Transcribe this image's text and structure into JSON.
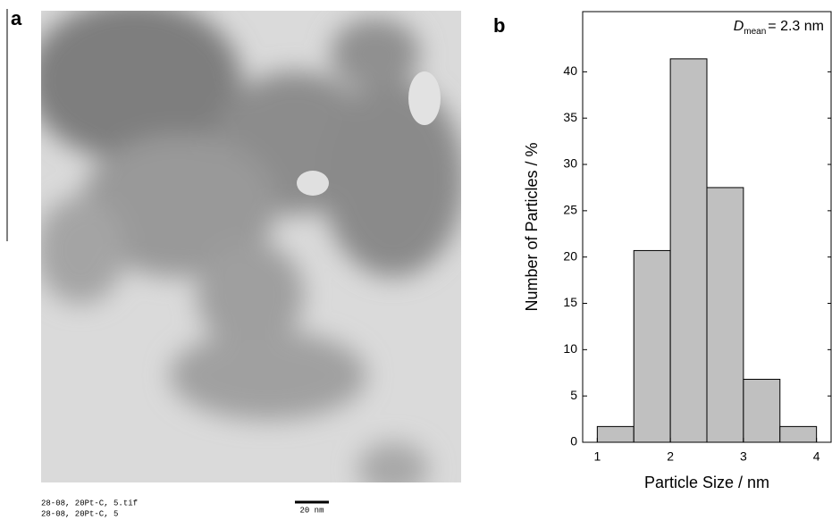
{
  "panel_labels": [
    "a",
    "b"
  ],
  "image": {
    "caption_lines": [
      "28-08, 20Pt-C, 5.tif",
      "28-08, 20Pt-C, 5"
    ],
    "scale_bar": "20 nm"
  },
  "chart_data": {
    "type": "histogram",
    "xlabel": "Particle Size / nm",
    "ylabel": "Number of Particles / %",
    "bins": [
      1,
      1.5,
      2,
      2.5,
      3,
      3.5,
      4
    ],
    "values": [
      1.7,
      20.7,
      41.4,
      27.5,
      6.8,
      1.7
    ],
    "color": "#c0c0c0",
    "xlim": [
      0.8,
      4.2
    ],
    "ylim": [
      0,
      46.5
    ],
    "xticks": [
      1,
      2,
      3,
      4
    ],
    "yticks": [
      0,
      5,
      10,
      15,
      20,
      25,
      30,
      35,
      40
    ],
    "annotation": {
      "symbol": "D",
      "subscript": "mean",
      "text": "= 2.3 nm"
    }
  }
}
